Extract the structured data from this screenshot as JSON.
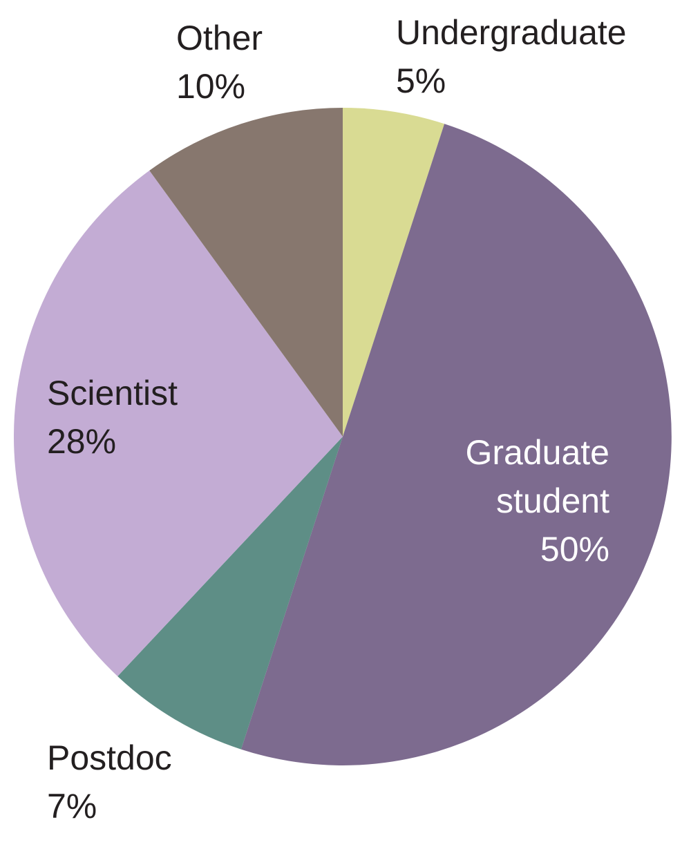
{
  "chart_data": {
    "type": "pie",
    "categories": [
      "Undergraduate",
      "Graduate student",
      "Postdoc",
      "Scientist",
      "Other"
    ],
    "values": [
      5,
      50,
      7,
      28,
      10
    ],
    "value_labels": [
      "5%",
      "50%",
      "7%",
      "28%",
      "10%"
    ],
    "colors": [
      "#d9db93",
      "#7d6b8f",
      "#5e8e86",
      "#c3acd4",
      "#87776e"
    ],
    "label_colors": [
      "#231f20",
      "#ffffff",
      "#231f20",
      "#231f20",
      "#231f20"
    ]
  }
}
